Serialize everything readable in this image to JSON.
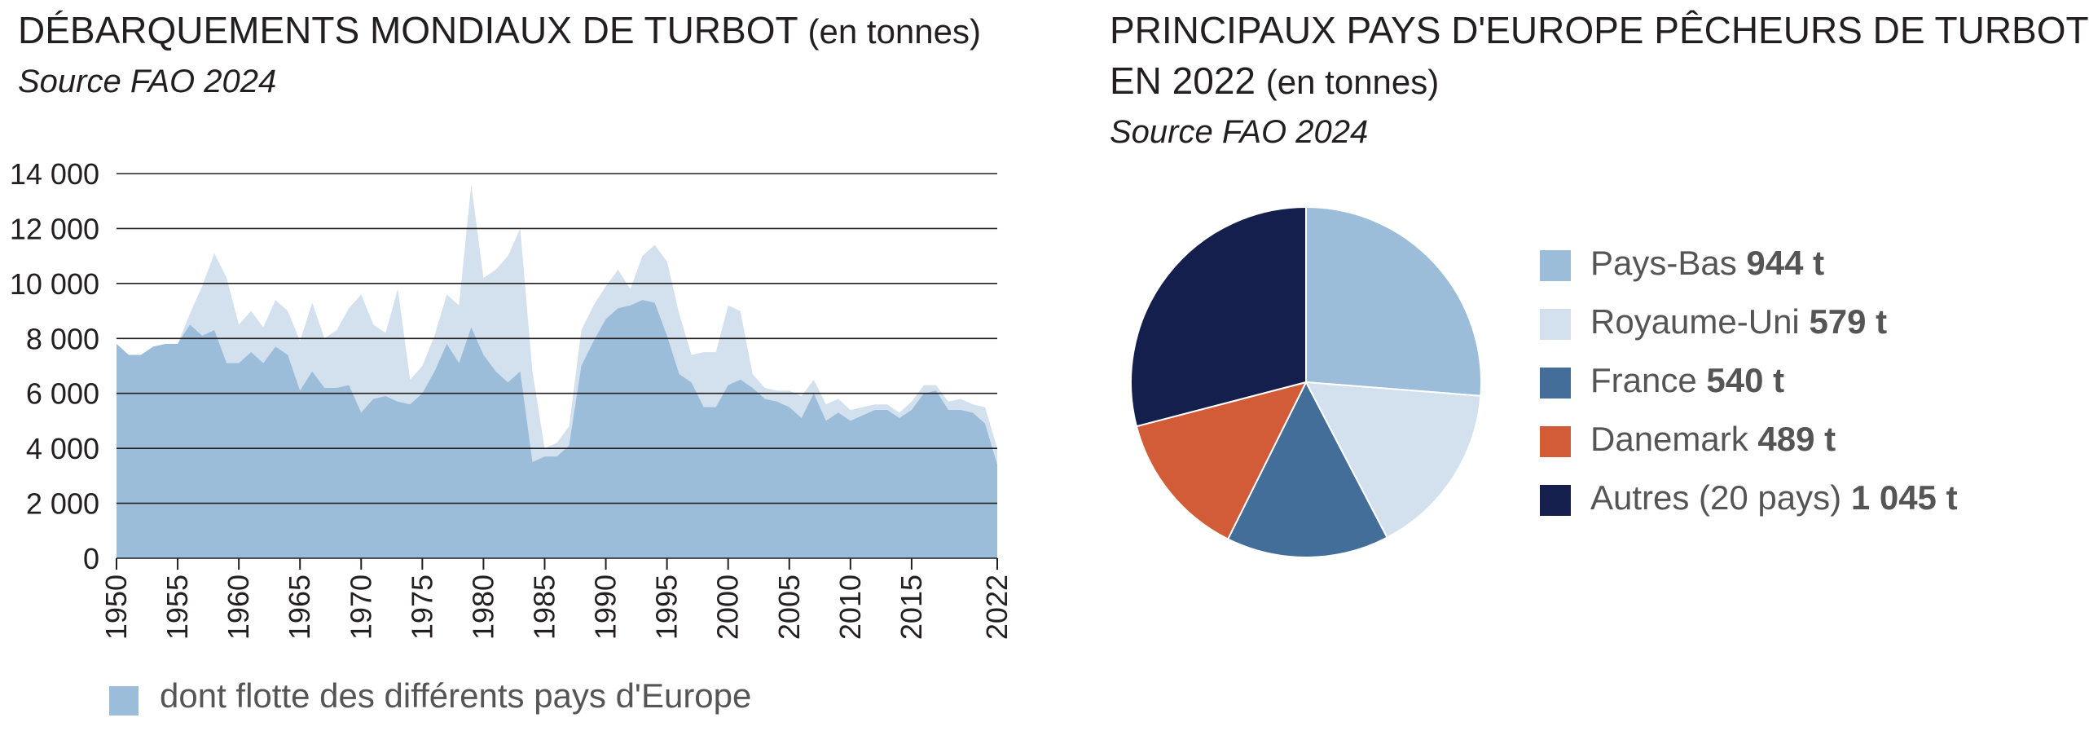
{
  "left": {
    "title_main": "DÉBARQUEMENTS MONDIAUX DE TURBOT",
    "title_unit": "(en tonnes)",
    "source": "Source FAO 2024",
    "legend_label": "dont flotte des différents pays d'Europe"
  },
  "right": {
    "title_line1": "PRINCIPAUX PAYS D'EUROPE PÊCHEURS DE TURBOT",
    "title_line2_main": "EN 2022",
    "title_line2_unit": "(en tonnes)",
    "source": "Source FAO 2024"
  },
  "colors": {
    "world": "#d3e0ed",
    "europe": "#9bbdd9",
    "pays_bas": "#9bbdd9",
    "royaume_uni": "#d3e0ed",
    "france": "#426e99",
    "danemark": "#d25c37",
    "autres": "#141f4e"
  },
  "chart_data": [
    {
      "type": "area",
      "title": "DÉBARQUEMENTS MONDIAUX DE TURBOT (en tonnes)",
      "ylim": [
        0,
        14000
      ],
      "yticks": [
        0,
        2000,
        4000,
        6000,
        8000,
        10000,
        12000,
        14000
      ],
      "ytick_labels": [
        "0",
        "2 000",
        "4 000",
        "6 000",
        "8 000",
        "10 000",
        "12 000",
        "14 000"
      ],
      "xlim": [
        1950,
        2022
      ],
      "xticks": [
        1950,
        1955,
        1960,
        1965,
        1970,
        1975,
        1980,
        1985,
        1990,
        1995,
        2000,
        2005,
        2010,
        2015,
        2022
      ],
      "grid": true,
      "x": [
        1950,
        1951,
        1952,
        1953,
        1954,
        1955,
        1956,
        1957,
        1958,
        1959,
        1960,
        1961,
        1962,
        1963,
        1964,
        1965,
        1966,
        1967,
        1968,
        1969,
        1970,
        1971,
        1972,
        1973,
        1974,
        1975,
        1976,
        1977,
        1978,
        1979,
        1980,
        1981,
        1982,
        1983,
        1984,
        1985,
        1986,
        1987,
        1988,
        1989,
        1990,
        1991,
        1992,
        1993,
        1994,
        1995,
        1996,
        1997,
        1998,
        1999,
        2000,
        2001,
        2002,
        2003,
        2004,
        2005,
        2006,
        2007,
        2008,
        2009,
        2010,
        2011,
        2012,
        2013,
        2014,
        2015,
        2016,
        2017,
        2018,
        2019,
        2020,
        2021,
        2022
      ],
      "series": [
        {
          "name": "",
          "values": [
            7800,
            7400,
            7400,
            7700,
            7800,
            7800,
            8900,
            9900,
            11100,
            10200,
            8500,
            9000,
            8400,
            9400,
            9000,
            7900,
            9300,
            8000,
            8300,
            9100,
            9600,
            8500,
            8200,
            9800,
            6500,
            7000,
            8100,
            9600,
            9200,
            13600,
            10200,
            10500,
            11000,
            12000,
            6800,
            4000,
            4200,
            4800,
            8300,
            9200,
            9900,
            10500,
            9800,
            11000,
            11400,
            10800,
            8900,
            7400,
            7500,
            7500,
            9200,
            9000,
            6700,
            6200,
            6100,
            6100,
            5900,
            6500,
            5600,
            5800,
            5400,
            5500,
            5600,
            5600,
            5300,
            5700,
            6300,
            6300,
            5700,
            5800,
            5600,
            5500,
            4000
          ]
        },
        {
          "name": "dont flotte des différents pays d'Europe",
          "values": [
            7800,
            7400,
            7400,
            7700,
            7800,
            7800,
            8500,
            8100,
            8300,
            7100,
            7100,
            7500,
            7100,
            7700,
            7400,
            6100,
            6800,
            6200,
            6200,
            6300,
            5300,
            5800,
            5900,
            5700,
            5600,
            6000,
            6800,
            7800,
            7100,
            8400,
            7400,
            6800,
            6400,
            6800,
            3500,
            3700,
            3700,
            4100,
            7000,
            7900,
            8700,
            9100,
            9200,
            9400,
            9300,
            8100,
            6700,
            6400,
            5500,
            5500,
            6300,
            6500,
            6200,
            5800,
            5700,
            5500,
            5100,
            6000,
            5000,
            5300,
            5000,
            5200,
            5400,
            5400,
            5100,
            5400,
            6000,
            6100,
            5400,
            5400,
            5300,
            4900,
            3400
          ]
        }
      ]
    },
    {
      "type": "pie",
      "title": "PRINCIPAUX PAYS D'EUROPE PÊCHEURS DE TURBOT EN 2022 (en tonnes)",
      "categories": [
        "Pays-Bas",
        "Royaume-Uni",
        "France",
        "Danemark",
        "Autres (20 pays)"
      ],
      "values": [
        944,
        579,
        540,
        489,
        1045
      ],
      "labels": [
        "944 t",
        "579 t",
        "540 t",
        "489 t",
        "1 045 t"
      ],
      "legend_placement": "right"
    }
  ]
}
